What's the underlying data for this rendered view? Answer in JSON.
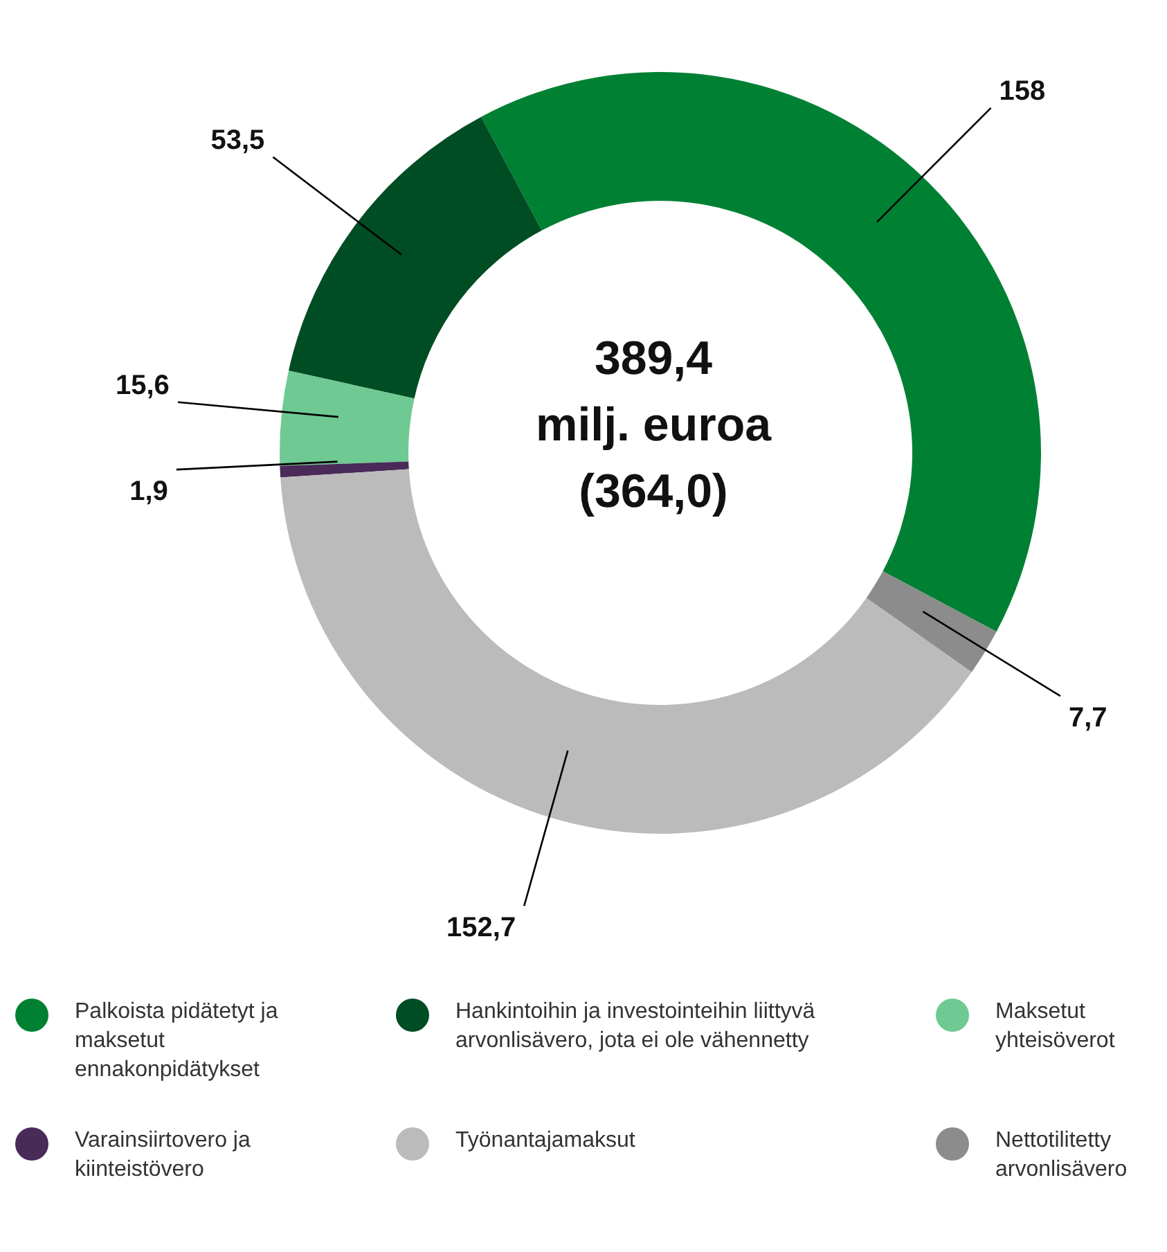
{
  "chart_data": {
    "type": "donut",
    "annotations": [
      "389,4",
      "milj. euroa",
      "(364,0)"
    ],
    "categories": [
      "Palkoista pidätetyt ja maksetut ennakonpidätykset",
      "Hankintoihin ja investointeihin liittyvä arvonlisävero, jota ei ole vähennetty",
      "Maksetut yhteisöverot",
      "Varainsiirtovero ja kiinteistövero",
      "Työnantajamaksut",
      "Nettotilitetty arvonlisävero"
    ],
    "values": [
      158,
      53.5,
      15.6,
      1.9,
      152.7,
      7.7
    ],
    "colors": [
      "#008033",
      "#004d23",
      "#6fc993",
      "#4a2a58",
      "#bbbbbb",
      "#8c8c8c"
    ],
    "value_labels": [
      "158",
      "53,5",
      "15,6",
      "1,9",
      "152,7",
      "7,7"
    ],
    "legend": "bottom"
  }
}
